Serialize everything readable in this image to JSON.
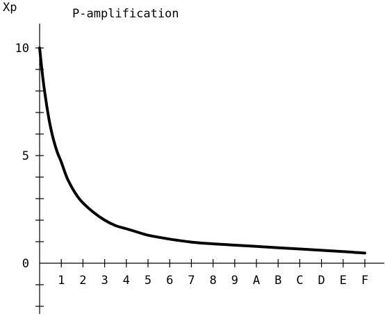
{
  "chart_data": {
    "type": "line",
    "title": "P-amplification",
    "ylabel": "Xp",
    "xlabel": "",
    "x_tick_labels": [
      "1",
      "2",
      "3",
      "4",
      "5",
      "6",
      "7",
      "8",
      "9",
      "A",
      "B",
      "C",
      "D",
      "E",
      "F"
    ],
    "y_tick_labels": [
      "10",
      "5",
      "0"
    ],
    "y_tick_values": [
      10,
      5,
      0
    ],
    "xlim": [
      0,
      15.5
    ],
    "ylim": [
      -2.5,
      10
    ],
    "grid": false,
    "series": [
      {
        "x": [
          0,
          0.15,
          0.3,
          0.45,
          0.6,
          0.8,
          1,
          1.25,
          1.5,
          1.75,
          2,
          2.5,
          3,
          3.5,
          4,
          4.5,
          5,
          6,
          7,
          8,
          9,
          10,
          11,
          12,
          13,
          14,
          15
        ],
        "y": [
          10.0,
          8.6,
          7.5,
          6.6,
          5.9,
          5.2,
          4.7,
          4.0,
          3.5,
          3.1,
          2.8,
          2.35,
          2.0,
          1.75,
          1.6,
          1.45,
          1.3,
          1.12,
          0.98,
          0.9,
          0.84,
          0.78,
          0.72,
          0.66,
          0.6,
          0.54,
          0.47
        ]
      }
    ]
  }
}
